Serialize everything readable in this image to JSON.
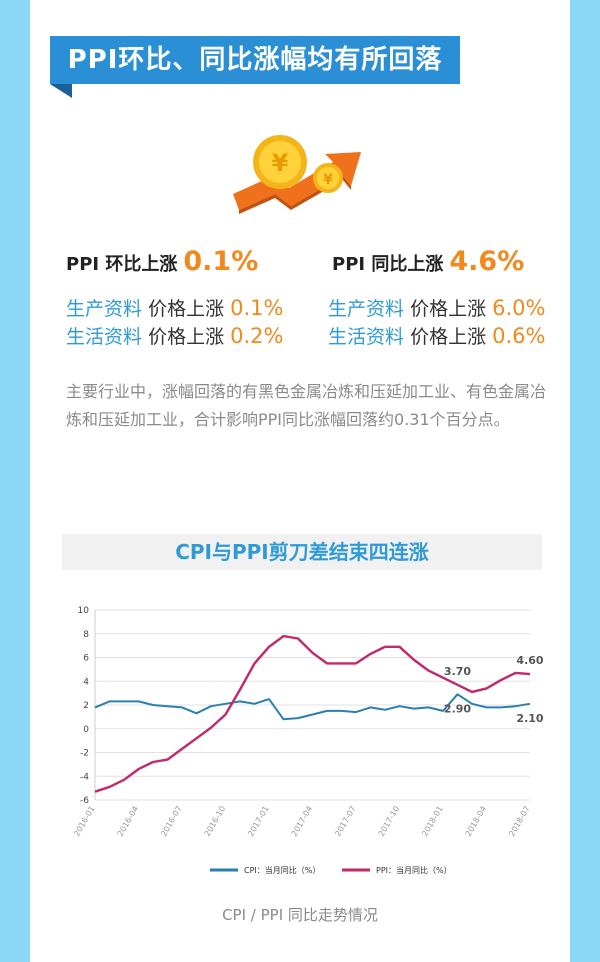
{
  "banner": {
    "title": "PPI环比、同比涨幅均有所回落"
  },
  "colors": {
    "accent_blue": "#2f9bd6",
    "accent_orange": "#f08a1e",
    "cpi_line": "#2a7fb0",
    "ppi_line": "#c2286a"
  },
  "icons": {
    "hero": "gold-coin-rising-arrow-icon"
  },
  "mom": {
    "headline_label": "PPI 环比上涨",
    "headline_value": "0.1%",
    "items": [
      {
        "category": "生产资料",
        "label": "价格上涨",
        "value": "0.1%"
      },
      {
        "category": "生活资料",
        "label": "价格上涨",
        "value": "0.2%"
      }
    ]
  },
  "yoy": {
    "headline_label": "PPI 同比上涨",
    "headline_value": "4.6%",
    "items": [
      {
        "category": "生产资料",
        "label": "价格上涨",
        "value": "6.0%"
      },
      {
        "category": "生活资料",
        "label": "价格上涨",
        "value": "0.6%"
      }
    ]
  },
  "paragraph": "主要行业中，涨幅回落的有黑色金属冶炼和压延加工业、有色金属冶炼和压延加工业，合计影响PPI同比涨幅回落约0.31个百分点。",
  "caption": "CPI / PPI 同比走势情况",
  "chart_data": {
    "type": "line",
    "title": "CPI与PPI剪刀差结束四连涨",
    "ylim": [
      -6,
      10
    ],
    "yticks": [
      10,
      8,
      6,
      4,
      2,
      0,
      -2,
      -4,
      -6
    ],
    "x": [
      "2016-01",
      "2016-02",
      "2016-03",
      "2016-04",
      "2016-05",
      "2016-06",
      "2016-07",
      "2016-08",
      "2016-09",
      "2016-10",
      "2016-11",
      "2016-12",
      "2017-01",
      "2017-02",
      "2017-03",
      "2017-04",
      "2017-05",
      "2017-06",
      "2017-07",
      "2017-08",
      "2017-09",
      "2017-10",
      "2017-11",
      "2017-12",
      "2018-01",
      "2018-02",
      "2018-03",
      "2018-04",
      "2018-05",
      "2018-06",
      "2018-07"
    ],
    "xtick_labels": [
      "2016-01",
      "2016-04",
      "2016-07",
      "2016-10",
      "2017-01",
      "2017-04",
      "2017-07",
      "2017-10",
      "2018-01",
      "2018-04",
      "2018-07"
    ],
    "grid": "horizontal",
    "legend_position": "bottom",
    "series": [
      {
        "name": "CPI：当月同比（%）",
        "color": "#2a7fb0",
        "values": [
          1.8,
          2.3,
          2.3,
          2.3,
          2.0,
          1.9,
          1.8,
          1.3,
          1.9,
          2.1,
          2.3,
          2.1,
          2.5,
          0.8,
          0.9,
          1.2,
          1.5,
          1.5,
          1.4,
          1.8,
          1.6,
          1.9,
          1.7,
          1.8,
          1.5,
          2.9,
          2.1,
          1.8,
          1.8,
          1.9,
          2.1
        ]
      },
      {
        "name": "PPI：当月同比（%）",
        "color": "#c2286a",
        "values": [
          -5.3,
          -4.9,
          -4.3,
          -3.4,
          -2.8,
          -2.6,
          -1.7,
          -0.8,
          0.1,
          1.2,
          3.3,
          5.5,
          6.9,
          7.8,
          7.6,
          6.4,
          5.5,
          5.5,
          5.5,
          6.3,
          6.9,
          6.9,
          5.8,
          4.9,
          4.3,
          3.7,
          3.1,
          3.4,
          4.1,
          4.7,
          4.6
        ]
      }
    ],
    "annotations": [
      {
        "series": "PPI：当月同比（%）",
        "x": "2018-02",
        "value": 3.7,
        "label": "3.70"
      },
      {
        "series": "PPI：当月同比（%）",
        "x": "2018-07",
        "value": 4.6,
        "label": "4.60"
      },
      {
        "series": "CPI：当月同比（%）",
        "x": "2018-02",
        "value": 2.9,
        "label": "2.90"
      },
      {
        "series": "CPI：当月同比（%）",
        "x": "2018-07",
        "value": 2.1,
        "label": "2.10"
      }
    ]
  }
}
